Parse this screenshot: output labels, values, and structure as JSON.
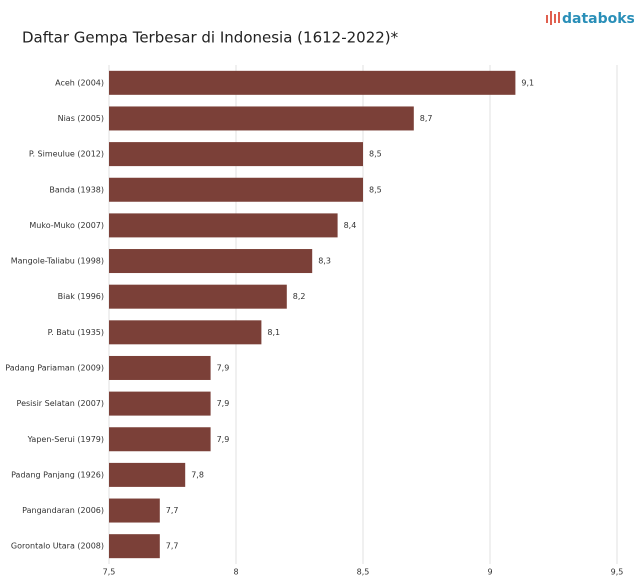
{
  "brand": "databoks",
  "chart_data": {
    "type": "barh",
    "title": "Daftar Gempa Terbesar di Indonesia (1612-2022)*",
    "categories": [
      "Aceh (2004)",
      "Nias (2005)",
      "P. Simeulue (2012)",
      "Banda (1938)",
      "Muko-Muko (2007)",
      "Mangole-Taliabu (1998)",
      "Biak (1996)",
      "P. Batu (1935)",
      "Padang Pariaman (2009)",
      "Pesisir Selatan (2007)",
      "Yapen-Serui (1979)",
      "Padang Panjang (1926)",
      "Pangandaran (2006)",
      "Gorontalo Utara (2008)"
    ],
    "values": [
      9.1,
      8.7,
      8.5,
      8.5,
      8.4,
      8.3,
      8.2,
      8.1,
      7.9,
      7.9,
      7.9,
      7.8,
      7.7,
      7.7
    ],
    "value_labels": [
      "9,1",
      "8,7",
      "8,5",
      "8,5",
      "8,4",
      "8,3",
      "8,2",
      "8,1",
      "7,9",
      "7,9",
      "7,9",
      "7,8",
      "7,7",
      "7,7"
    ],
    "color": "#7b4038",
    "xlim": [
      7.5,
      9.5
    ],
    "xticks": [
      {
        "value": 7.5,
        "label": "7,5"
      },
      8,
      {
        "value": 8.5,
        "label": "8,5"
      },
      9,
      {
        "value": 9.5,
        "label": "9,5"
      }
    ],
    "grid": true
  }
}
